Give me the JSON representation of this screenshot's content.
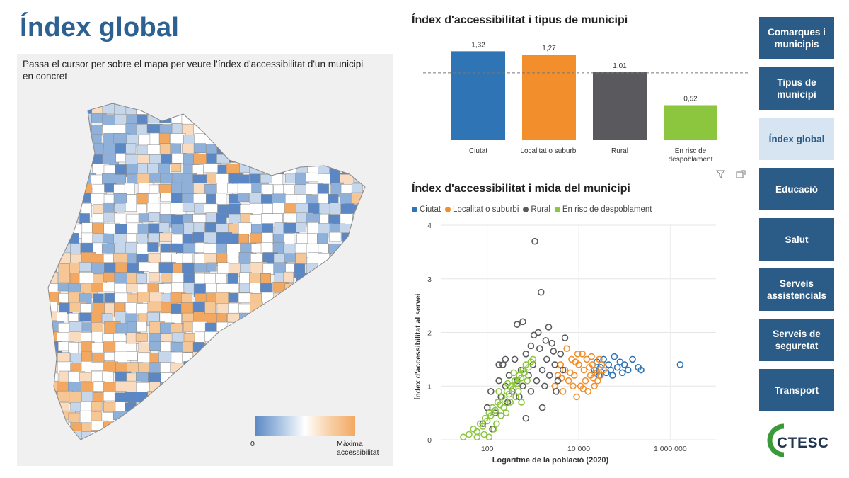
{
  "page": {
    "title": "Índex global"
  },
  "map": {
    "hint": "Passa el cursor per sobre el mapa per veure l'índex d'accessibilitat d'un municipi en concret",
    "legend_min": "0",
    "legend_max": "Màxima accessibilitat",
    "colors": {
      "low": "#5b88c4",
      "mid": "#ffffff",
      "high": "#f3a862"
    }
  },
  "bar_chart": {
    "title": "Índex d'accessibilitat i tipus de municipi"
  },
  "scatter_chart": {
    "title": "Índex d'accessibilitat i mida del municipi",
    "legend": [
      "Ciutat",
      "Localitat o suburbi",
      "Rural",
      "En risc de despoblament"
    ]
  },
  "toolbar": {
    "filter_icon": "filter-icon",
    "focus_icon": "focus-mode-icon"
  },
  "nav": {
    "items": [
      {
        "label": "Comarques i municipis",
        "active": false
      },
      {
        "label": "Tipus de municipi",
        "active": false
      },
      {
        "label": "Índex global",
        "active": true
      },
      {
        "label": "Educació",
        "active": false
      },
      {
        "label": "Salut",
        "active": false
      },
      {
        "label": "Serveis assistencials",
        "active": false
      },
      {
        "label": "Serveis de seguretat",
        "active": false
      },
      {
        "label": "Transport",
        "active": false
      }
    ]
  },
  "logo": {
    "text": "CTESC",
    "color": "#3a9a3a"
  },
  "chart_data": [
    {
      "type": "bar",
      "title": "Índex d'accessibilitat i tipus de municipi",
      "categories": [
        "Ciutat",
        "Localitat o suburbi",
        "Rural",
        "En risc de despoblament"
      ],
      "values": [
        1.32,
        1.27,
        1.01,
        0.52
      ],
      "value_labels": [
        "1,32",
        "1,27",
        "1,01",
        "0,52"
      ],
      "colors": [
        "#2f74b5",
        "#f28e2b",
        "#5a5a5e",
        "#8cc63f"
      ],
      "reference_line": 1,
      "xlabel": "",
      "ylabel": "",
      "ylim": [
        0,
        1.45
      ]
    },
    {
      "type": "scatter",
      "title": "Índex d'accessibilitat i mida del municipi",
      "xlabel": "Logaritme de la població (2020)",
      "ylabel": "Índex d'accessibilitat al servei",
      "x_scale": "log",
      "xlim": [
        10,
        10000000
      ],
      "ylim": [
        0,
        4
      ],
      "x_ticks": [
        100,
        10000,
        1000000
      ],
      "x_tick_labels": [
        "100",
        "10 000",
        "1 000 000"
      ],
      "y_ticks": [
        0,
        1,
        2,
        3,
        4
      ],
      "y_tick_labels": [
        "0",
        "1",
        "2",
        "3",
        "4"
      ],
      "legend_position": "top-left",
      "series": [
        {
          "name": "Ciutat",
          "color": "#2f74b5",
          "points": [
            [
              22000,
              1.3
            ],
            [
              25000,
              1.45
            ],
            [
              30000,
              1.35
            ],
            [
              35000,
              1.5
            ],
            [
              40000,
              1.25
            ],
            [
              45000,
              1.4
            ],
            [
              50000,
              1.3
            ],
            [
              60000,
              1.55
            ],
            [
              70000,
              1.35
            ],
            [
              80000,
              1.45
            ],
            [
              100000,
              1.4
            ],
            [
              120000,
              1.3
            ],
            [
              150000,
              1.5
            ],
            [
              200000,
              1.35
            ],
            [
              230000,
              1.3
            ],
            [
              1650000,
              1.4
            ],
            [
              28000,
              1.2
            ],
            [
              55000,
              1.2
            ],
            [
              90000,
              1.25
            ]
          ]
        },
        {
          "name": "Localitat o suburbi",
          "color": "#f28e2b",
          "points": [
            [
              3000,
              1.0
            ],
            [
              3500,
              1.2
            ],
            [
              4000,
              1.4
            ],
            [
              4500,
              0.9
            ],
            [
              5000,
              1.3
            ],
            [
              6000,
              1.1
            ],
            [
              7000,
              1.5
            ],
            [
              8000,
              1.2
            ],
            [
              9000,
              0.8
            ],
            [
              10000,
              1.4
            ],
            [
              11000,
              1.0
            ],
            [
              12000,
              1.6
            ],
            [
              13000,
              1.3
            ],
            [
              14000,
              1.1
            ],
            [
              15000,
              1.5
            ],
            [
              16000,
              0.9
            ],
            [
              18000,
              1.2
            ],
            [
              20000,
              1.4
            ],
            [
              22000,
              1.0
            ],
            [
              24000,
              1.3
            ],
            [
              26000,
              1.1
            ],
            [
              28000,
              1.5
            ],
            [
              30000,
              1.2
            ],
            [
              32000,
              1.4
            ],
            [
              35000,
              1.3
            ],
            [
              5500,
              1.7
            ],
            [
              7500,
              1.0
            ],
            [
              9500,
              1.6
            ],
            [
              12500,
              0.95
            ],
            [
              17000,
              1.35
            ],
            [
              19000,
              1.55
            ],
            [
              21000,
              1.15
            ],
            [
              25000,
              1.25
            ],
            [
              6500,
              1.25
            ],
            [
              8500,
              1.45
            ],
            [
              4200,
              1.15
            ]
          ]
        },
        {
          "name": "Rural",
          "color": "#5a5a5e",
          "points": [
            [
              80,
              0.3
            ],
            [
              100,
              0.6
            ],
            [
              120,
              0.9
            ],
            [
              150,
              0.5
            ],
            [
              180,
              1.1
            ],
            [
              200,
              0.8
            ],
            [
              220,
              1.4
            ],
            [
              250,
              1.0
            ],
            [
              280,
              0.7
            ],
            [
              300,
              1.2
            ],
            [
              350,
              0.9
            ],
            [
              400,
              1.5
            ],
            [
              450,
              1.1
            ],
            [
              500,
              0.8
            ],
            [
              550,
              1.3
            ],
            [
              600,
              1.0
            ],
            [
              700,
              1.6
            ],
            [
              800,
              1.2
            ],
            [
              900,
              0.9
            ],
            [
              1000,
              1.4
            ],
            [
              1200,
              1.1
            ],
            [
              1400,
              1.7
            ],
            [
              1600,
              1.3
            ],
            [
              1800,
              1.0
            ],
            [
              2000,
              1.5
            ],
            [
              2300,
              1.2
            ],
            [
              2600,
              1.8
            ],
            [
              3000,
              1.4
            ],
            [
              3500,
              1.1
            ],
            [
              4000,
              1.6
            ],
            [
              4500,
              1.3
            ],
            [
              5000,
              1.9
            ],
            [
              1100,
              3.7
            ],
            [
              1500,
              2.75
            ],
            [
              450,
              2.15
            ],
            [
              600,
              2.2
            ],
            [
              1300,
              2.0
            ],
            [
              2200,
              2.1
            ],
            [
              900,
              1.75
            ],
            [
              700,
              0.4
            ],
            [
              130,
              0.2
            ],
            [
              250,
              1.5
            ],
            [
              180,
              1.4
            ],
            [
              1600,
              0.6
            ],
            [
              3200,
              0.9
            ],
            [
              2800,
              1.65
            ],
            [
              1900,
              1.85
            ],
            [
              1050,
              1.95
            ]
          ]
        },
        {
          "name": "En risc de despoblament",
          "color": "#8cc63f",
          "points": [
            [
              30,
              0.05
            ],
            [
              40,
              0.1
            ],
            [
              50,
              0.2
            ],
            [
              60,
              0.15
            ],
            [
              70,
              0.3
            ],
            [
              80,
              0.25
            ],
            [
              90,
              0.4
            ],
            [
              100,
              0.35
            ],
            [
              110,
              0.5
            ],
            [
              120,
              0.45
            ],
            [
              130,
              0.6
            ],
            [
              150,
              0.55
            ],
            [
              170,
              0.7
            ],
            [
              190,
              0.65
            ],
            [
              210,
              0.8
            ],
            [
              240,
              0.75
            ],
            [
              270,
              0.9
            ],
            [
              300,
              0.85
            ],
            [
              330,
              1.0
            ],
            [
              370,
              0.95
            ],
            [
              400,
              1.1
            ],
            [
              450,
              1.05
            ],
            [
              500,
              1.2
            ],
            [
              550,
              1.15
            ],
            [
              600,
              1.3
            ],
            [
              650,
              1.25
            ],
            [
              700,
              1.4
            ],
            [
              800,
              1.35
            ],
            [
              900,
              1.45
            ],
            [
              60,
              0.05
            ],
            [
              85,
              0.1
            ],
            [
              110,
              0.05
            ],
            [
              140,
              0.2
            ],
            [
              160,
              0.3
            ],
            [
              200,
              0.45
            ],
            [
              230,
              0.6
            ],
            [
              260,
              0.5
            ],
            [
              320,
              0.7
            ],
            [
              420,
              0.8
            ],
            [
              480,
              0.9
            ],
            [
              560,
              0.7
            ],
            [
              380,
              1.25
            ],
            [
              280,
              1.05
            ],
            [
              180,
              0.9
            ],
            [
              1000,
              1.5
            ],
            [
              750,
              1.1
            ]
          ]
        }
      ]
    }
  ]
}
